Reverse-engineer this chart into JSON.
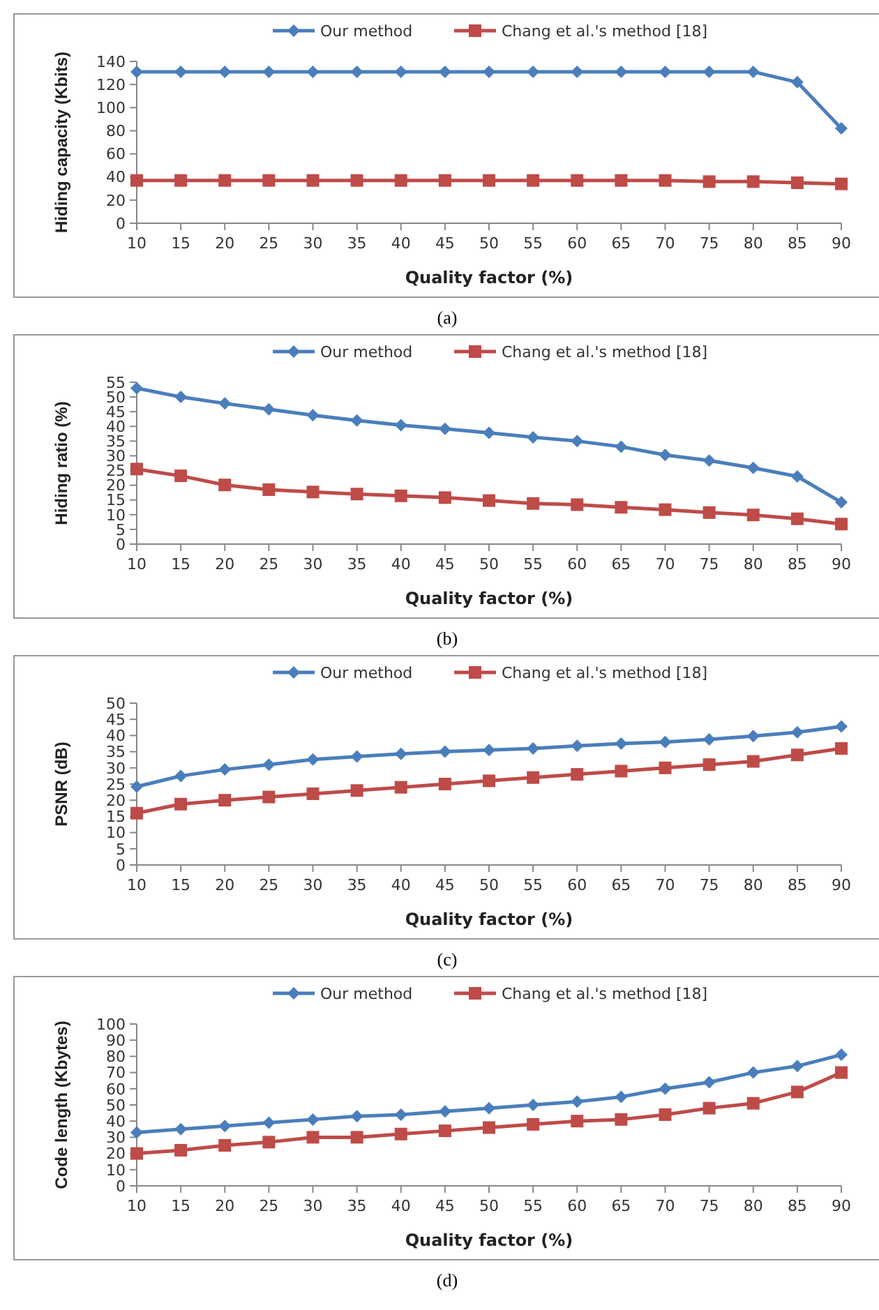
{
  "chart_data": [
    {
      "type": "line",
      "xlabel": "Quality factor (%)",
      "ylabel": "Hiding capacity (Kbits)",
      "annotations": [
        "(a)"
      ],
      "categories": [
        "10",
        "15",
        "20",
        "25",
        "30",
        "35",
        "40",
        "45",
        "50",
        "55",
        "60",
        "65",
        "70",
        "75",
        "80",
        "85",
        "90"
      ],
      "ylim": [
        0,
        140
      ],
      "yticks": [
        0,
        20,
        40,
        60,
        80,
        100,
        120,
        140
      ],
      "grid": false,
      "legend": "top",
      "series": [
        {
          "name": "Our method",
          "color": "#4a7ebb",
          "marker": "diamond",
          "values": [
            131,
            131,
            131,
            131,
            131,
            131,
            131,
            131,
            131,
            131,
            131,
            131,
            131,
            131,
            131,
            122,
            82
          ]
        },
        {
          "name": "Chang et al.'s method [18]",
          "color": "#be4b48",
          "marker": "square",
          "values": [
            37,
            37,
            37,
            37,
            37,
            37,
            37,
            37,
            37,
            37,
            37,
            37,
            37,
            36,
            36,
            35,
            34
          ]
        }
      ]
    },
    {
      "type": "line",
      "xlabel": "Quality factor (%)",
      "ylabel": "Hiding ratio (%)",
      "annotations": [
        "(b)"
      ],
      "categories": [
        "10",
        "15",
        "20",
        "25",
        "30",
        "35",
        "40",
        "45",
        "50",
        "55",
        "60",
        "65",
        "70",
        "75",
        "80",
        "85",
        "90"
      ],
      "ylim": [
        0,
        55
      ],
      "yticks": [
        0,
        5,
        10,
        15,
        20,
        25,
        30,
        35,
        40,
        45,
        50,
        55
      ],
      "grid": false,
      "legend": "top",
      "series": [
        {
          "name": "Our method",
          "color": "#4a7ebb",
          "marker": "diamond",
          "values": [
            53,
            50,
            47.8,
            45.8,
            43.8,
            42,
            40.4,
            39.2,
            37.8,
            36.3,
            35,
            33.1,
            30.3,
            28.4,
            25.9,
            23,
            14.2
          ]
        },
        {
          "name": "Chang et al.'s method [18]",
          "color": "#be4b48",
          "marker": "square",
          "values": [
            25.5,
            23.2,
            20.1,
            18.5,
            17.7,
            17,
            16.4,
            15.8,
            14.8,
            13.8,
            13.4,
            12.5,
            11.7,
            10.7,
            9.9,
            8.6,
            6.8
          ]
        }
      ]
    },
    {
      "type": "line",
      "xlabel": "Quality factor (%)",
      "ylabel": "PSNR (dB)",
      "annotations": [
        "(c)"
      ],
      "categories": [
        "10",
        "15",
        "20",
        "25",
        "30",
        "35",
        "40",
        "45",
        "50",
        "55",
        "60",
        "65",
        "70",
        "75",
        "80",
        "85",
        "90"
      ],
      "ylim": [
        0,
        50
      ],
      "yticks": [
        0,
        5,
        10,
        15,
        20,
        25,
        30,
        35,
        40,
        45,
        50
      ],
      "grid": false,
      "legend": "top",
      "series": [
        {
          "name": "Our method",
          "color": "#4a7ebb",
          "marker": "diamond",
          "values": [
            24.2,
            27.5,
            29.5,
            31,
            32.6,
            33.5,
            34.3,
            35,
            35.5,
            36,
            36.8,
            37.5,
            38,
            38.8,
            39.8,
            41,
            42.8
          ]
        },
        {
          "name": "Chang et al.'s method [18]",
          "color": "#be4b48",
          "marker": "square",
          "values": [
            16,
            18.8,
            20,
            21,
            22,
            23,
            24,
            25,
            26,
            27,
            28,
            29,
            30,
            31,
            32,
            34,
            36
          ]
        }
      ]
    },
    {
      "type": "line",
      "xlabel": "Quality factor (%)",
      "ylabel": "Code length (Kbytes)",
      "annotations": [
        "(d)"
      ],
      "categories": [
        "10",
        "15",
        "20",
        "25",
        "30",
        "35",
        "40",
        "45",
        "50",
        "55",
        "60",
        "65",
        "70",
        "75",
        "80",
        "85",
        "90"
      ],
      "ylim": [
        0,
        100
      ],
      "yticks": [
        0,
        10,
        20,
        30,
        40,
        50,
        60,
        70,
        80,
        90,
        100
      ],
      "grid": false,
      "legend": "top",
      "series": [
        {
          "name": "Our method",
          "color": "#4a7ebb",
          "marker": "diamond",
          "values": [
            33,
            35,
            37,
            39,
            41,
            43,
            44,
            46,
            48,
            50,
            52,
            55,
            60,
            64,
            70,
            74,
            81
          ]
        },
        {
          "name": "Chang et al.'s method [18]",
          "color": "#be4b48",
          "marker": "square",
          "values": [
            20,
            22,
            25,
            27,
            30,
            30,
            32,
            34,
            36,
            38,
            40,
            41,
            44,
            48,
            51,
            58,
            70
          ]
        }
      ]
    }
  ]
}
